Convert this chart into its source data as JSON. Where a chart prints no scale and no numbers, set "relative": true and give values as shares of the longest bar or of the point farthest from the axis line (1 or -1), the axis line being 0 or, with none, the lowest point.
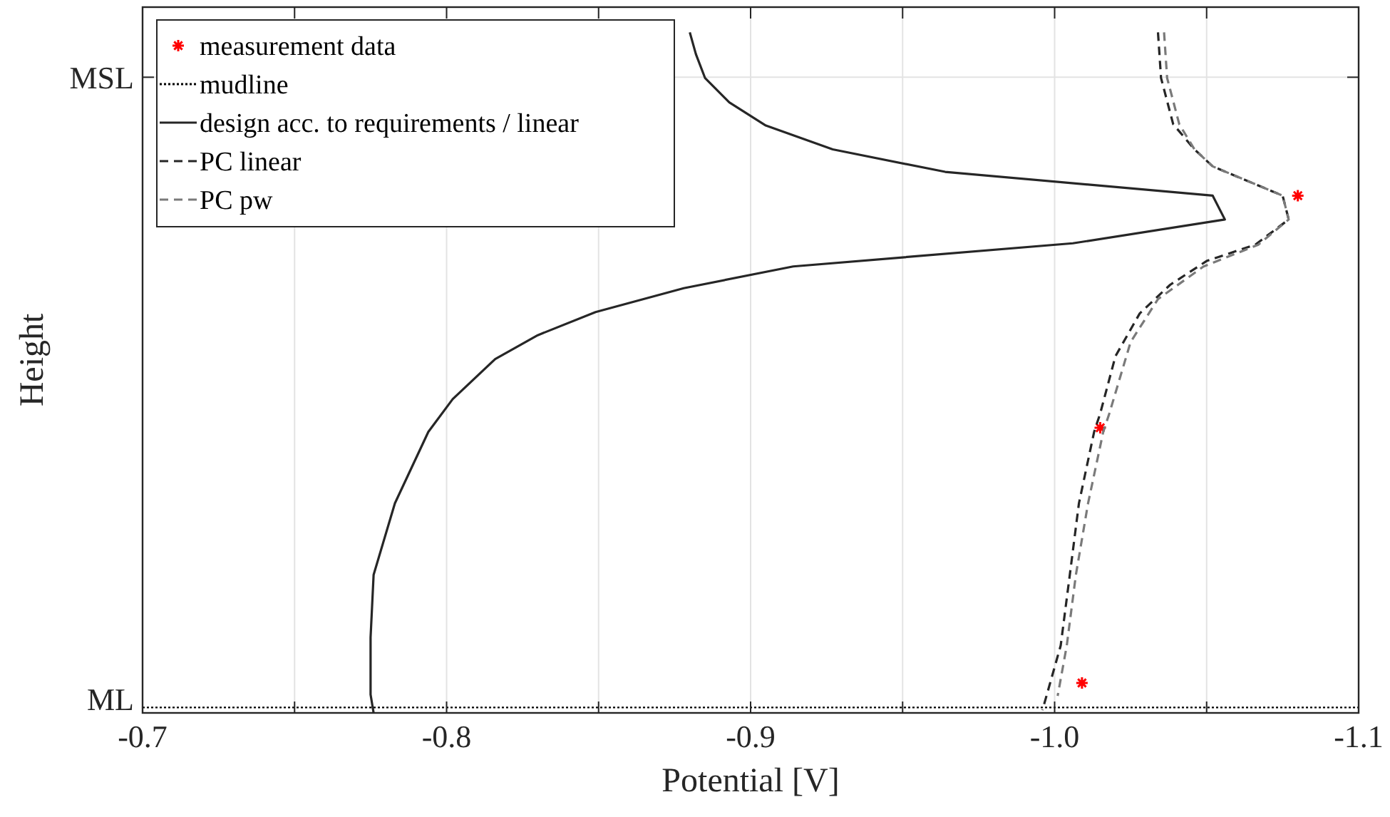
{
  "chart_data": {
    "type": "line",
    "relative": true,
    "xlabel": "Potential [V]",
    "ylabel": "Height",
    "xlim": [
      -0.7,
      -1.1
    ],
    "xticks": [
      -0.7,
      {
        "value": -0.75,
        "label": null
      },
      -0.8,
      {
        "value": -0.85,
        "label": null
      },
      -0.9,
      {
        "value": -0.95,
        "label": null
      },
      {
        "value": -1,
        "label": "-1.0"
      },
      {
        "value": -1.05,
        "label": null
      },
      -1.1
    ],
    "ref_lines": [
      {
        "axis": "y",
        "value": 0.934,
        "label": "MSL"
      }
    ],
    "annotations": [
      "ML"
    ],
    "grid": "x",
    "legend": "top left",
    "series": [
      {
        "name": "measurement data",
        "type": "scatter",
        "marker": "cross",
        "color": "#ff0000",
        "x": [
          -1.08,
          -1.015,
          -1.009
        ],
        "values": [
          0.76,
          0.419,
          0.044
        ]
      },
      {
        "name": "mudline",
        "line_style": "dotted",
        "color": "#000000",
        "x": [
          -0.7,
          -1.1
        ],
        "values": [
          0.008,
          0.008
        ]
      },
      {
        "name": "design acc. to requirements / linear",
        "line_style": "solid",
        "color": "#262626",
        "x": [
          -0.88,
          -0.882,
          -0.885,
          -0.893,
          -0.905,
          -0.927,
          -0.964,
          -1.052,
          -1.056,
          -1.006,
          -0.914,
          -0.878,
          -0.849,
          -0.83,
          -0.816,
          -0.802,
          -0.794,
          -0.783,
          -0.776,
          -0.775,
          -0.775,
          -0.776
        ],
        "values": [
          1,
          0.968,
          0.933,
          0.897,
          0.863,
          0.828,
          0.795,
          0.76,
          0.725,
          0.69,
          0.656,
          0.624,
          0.589,
          0.555,
          0.52,
          0.461,
          0.413,
          0.308,
          0.203,
          0.111,
          0.027,
          0
        ]
      },
      {
        "name": "PC linear",
        "line_style": "dashed",
        "color": "#262626",
        "x": [
          -1.034,
          -1.035,
          -1.039,
          -1.046,
          -1.052,
          -1.075,
          -1.077,
          -1.066,
          -1.05,
          -1.038,
          -1.028,
          -1.02,
          -1.015,
          -1.013,
          -1.008,
          -1.005,
          -1.002,
          -0.996
        ],
        "values": [
          1,
          0.933,
          0.865,
          0.828,
          0.803,
          0.76,
          0.725,
          0.688,
          0.664,
          0.629,
          0.587,
          0.524,
          0.44,
          0.413,
          0.308,
          0.203,
          0.099,
          0.004
        ]
      },
      {
        "name": "PC pw",
        "line_style": "dashed",
        "color": "#7a7a7a",
        "x": [
          -1.036,
          -1.037,
          -1.041,
          -1.046,
          -1.052,
          -1.075,
          -1.077,
          -1.067,
          -1.049,
          -1.034,
          -1.025,
          -1.018,
          -1.016,
          -1.011,
          -1.007,
          -1.004,
          -1.001
        ],
        "values": [
          1,
          0.933,
          0.865,
          0.828,
          0.803,
          0.76,
          0.725,
          0.688,
          0.656,
          0.608,
          0.545,
          0.44,
          0.413,
          0.308,
          0.203,
          0.099,
          0.025
        ]
      }
    ]
  }
}
